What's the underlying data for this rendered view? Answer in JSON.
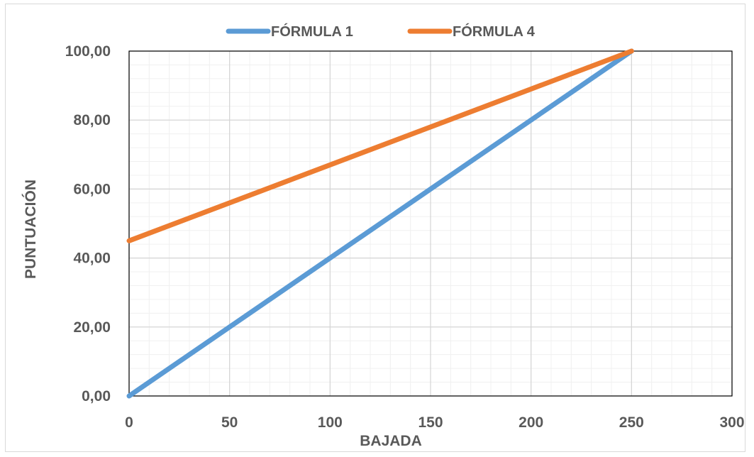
{
  "chart_data": {
    "type": "line",
    "title": "",
    "xlabel": "BAJADA",
    "ylabel": "PUNTUACIÓN",
    "xlim": [
      0,
      300
    ],
    "ylim": [
      0,
      100
    ],
    "x_ticks": [
      0,
      50,
      100,
      150,
      200,
      250,
      300
    ],
    "x_tick_labels": [
      "0",
      "50",
      "100",
      "150",
      "200",
      "250",
      "300"
    ],
    "y_ticks": [
      0,
      20,
      40,
      60,
      80,
      100
    ],
    "y_tick_labels": [
      "0,00",
      "20,00",
      "40,00",
      "60,00",
      "80,00",
      "100,00"
    ],
    "grid": "major and minor",
    "legend_position": "top",
    "series": [
      {
        "name": "FÓRMULA 1",
        "color": "#5b9bd5",
        "points": [
          [
            0,
            0
          ],
          [
            250,
            100
          ]
        ]
      },
      {
        "name": "FÓRMULA 4",
        "color": "#ed7d31",
        "points": [
          [
            0,
            45
          ],
          [
            250,
            100
          ]
        ]
      }
    ]
  }
}
